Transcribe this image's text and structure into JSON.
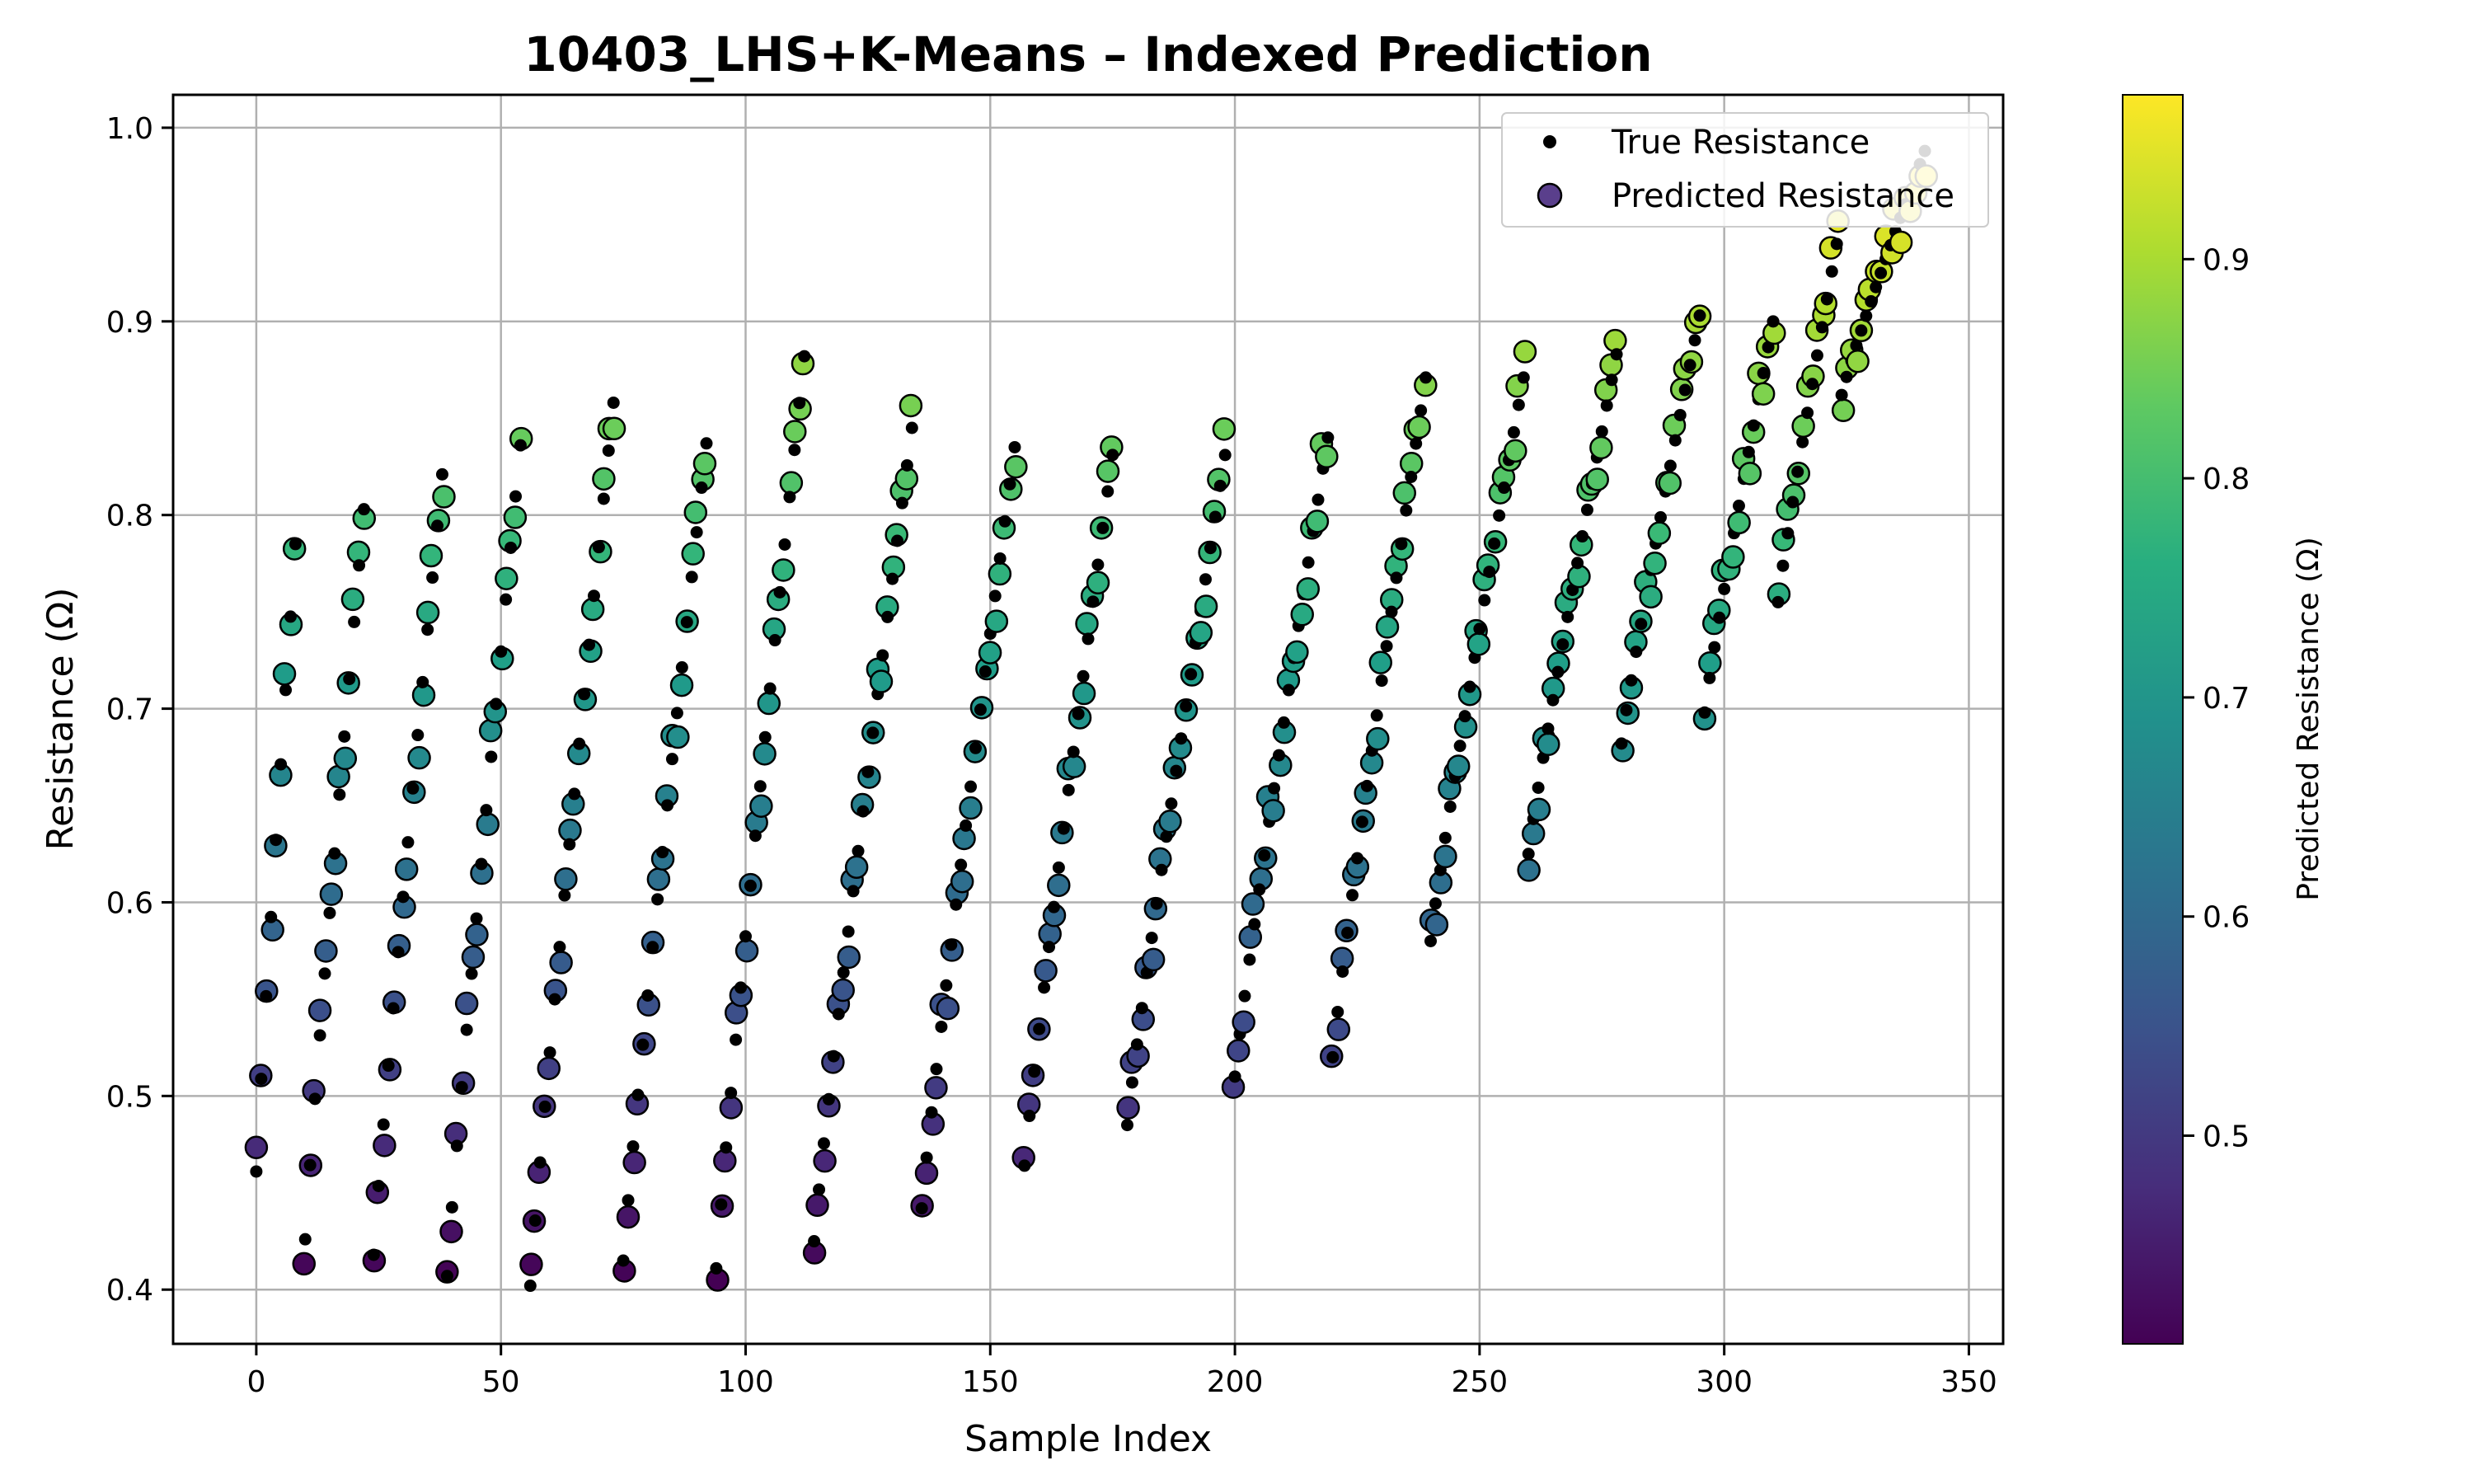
{
  "chart_data": {
    "type": "scatter",
    "title": "10403_LHS+K-Means – Indexed Prediction",
    "xlabel": "Sample Index",
    "ylabel": "Resistance (Ω)",
    "xlim": [
      -17,
      357
    ],
    "ylim": [
      0.372,
      1.017
    ],
    "xticks": [
      0,
      50,
      100,
      150,
      200,
      250,
      300,
      350
    ],
    "yticks": [
      0.4,
      0.5,
      0.6,
      0.7,
      0.8,
      0.9,
      1.0
    ],
    "grid": true,
    "legend_position": "top-right",
    "legend": [
      "True Resistance",
      "Predicted Resistance"
    ],
    "colorbar": {
      "label": "Predicted Resistance (Ω)",
      "colormap": "viridis",
      "range": [
        0.405,
        0.975
      ],
      "ticks": [
        0.5,
        0.6,
        0.7,
        0.8,
        0.9
      ]
    },
    "sweeps": [
      {
        "x0": 0,
        "x1": 8,
        "y0": 0.461,
        "y1": 0.785
      },
      {
        "x0": 10,
        "x1": 22,
        "y0": 0.426,
        "y1": 0.803
      },
      {
        "x0": 24,
        "x1": 38,
        "y0": 0.418,
        "y1": 0.821
      },
      {
        "x0": 39,
        "x1": 54,
        "y0": 0.407,
        "y1": 0.836
      },
      {
        "x0": 56,
        "x1": 73,
        "y0": 0.402,
        "y1": 0.858
      },
      {
        "x0": 75,
        "x1": 92,
        "y0": 0.415,
        "y1": 0.837
      },
      {
        "x0": 94,
        "x1": 112,
        "y0": 0.411,
        "y1": 0.882
      },
      {
        "x0": 114,
        "x1": 134,
        "y0": 0.425,
        "y1": 0.845
      },
      {
        "x0": 136,
        "x1": 155,
        "y0": 0.442,
        "y1": 0.835
      },
      {
        "x0": 157,
        "x1": 175,
        "y0": 0.464,
        "y1": 0.831
      },
      {
        "x0": 178,
        "x1": 198,
        "y0": 0.485,
        "y1": 0.831
      },
      {
        "x0": 200,
        "x1": 219,
        "y0": 0.51,
        "y1": 0.84
      },
      {
        "x0": 220,
        "x1": 239,
        "y0": 0.52,
        "y1": 0.871
      },
      {
        "x0": 240,
        "x1": 259,
        "y0": 0.58,
        "y1": 0.871
      },
      {
        "x0": 260,
        "x1": 278,
        "y0": 0.625,
        "y1": 0.883
      },
      {
        "x0": 279,
        "x1": 295,
        "y0": 0.682,
        "y1": 0.903
      },
      {
        "x0": 296,
        "x1": 310,
        "y0": 0.698,
        "y1": 0.9
      },
      {
        "x0": 311,
        "x1": 323,
        "y0": 0.755,
        "y1": 0.94
      },
      {
        "x0": 324,
        "x1": 341,
        "y0": 0.862,
        "y1": 0.988
      }
    ]
  }
}
